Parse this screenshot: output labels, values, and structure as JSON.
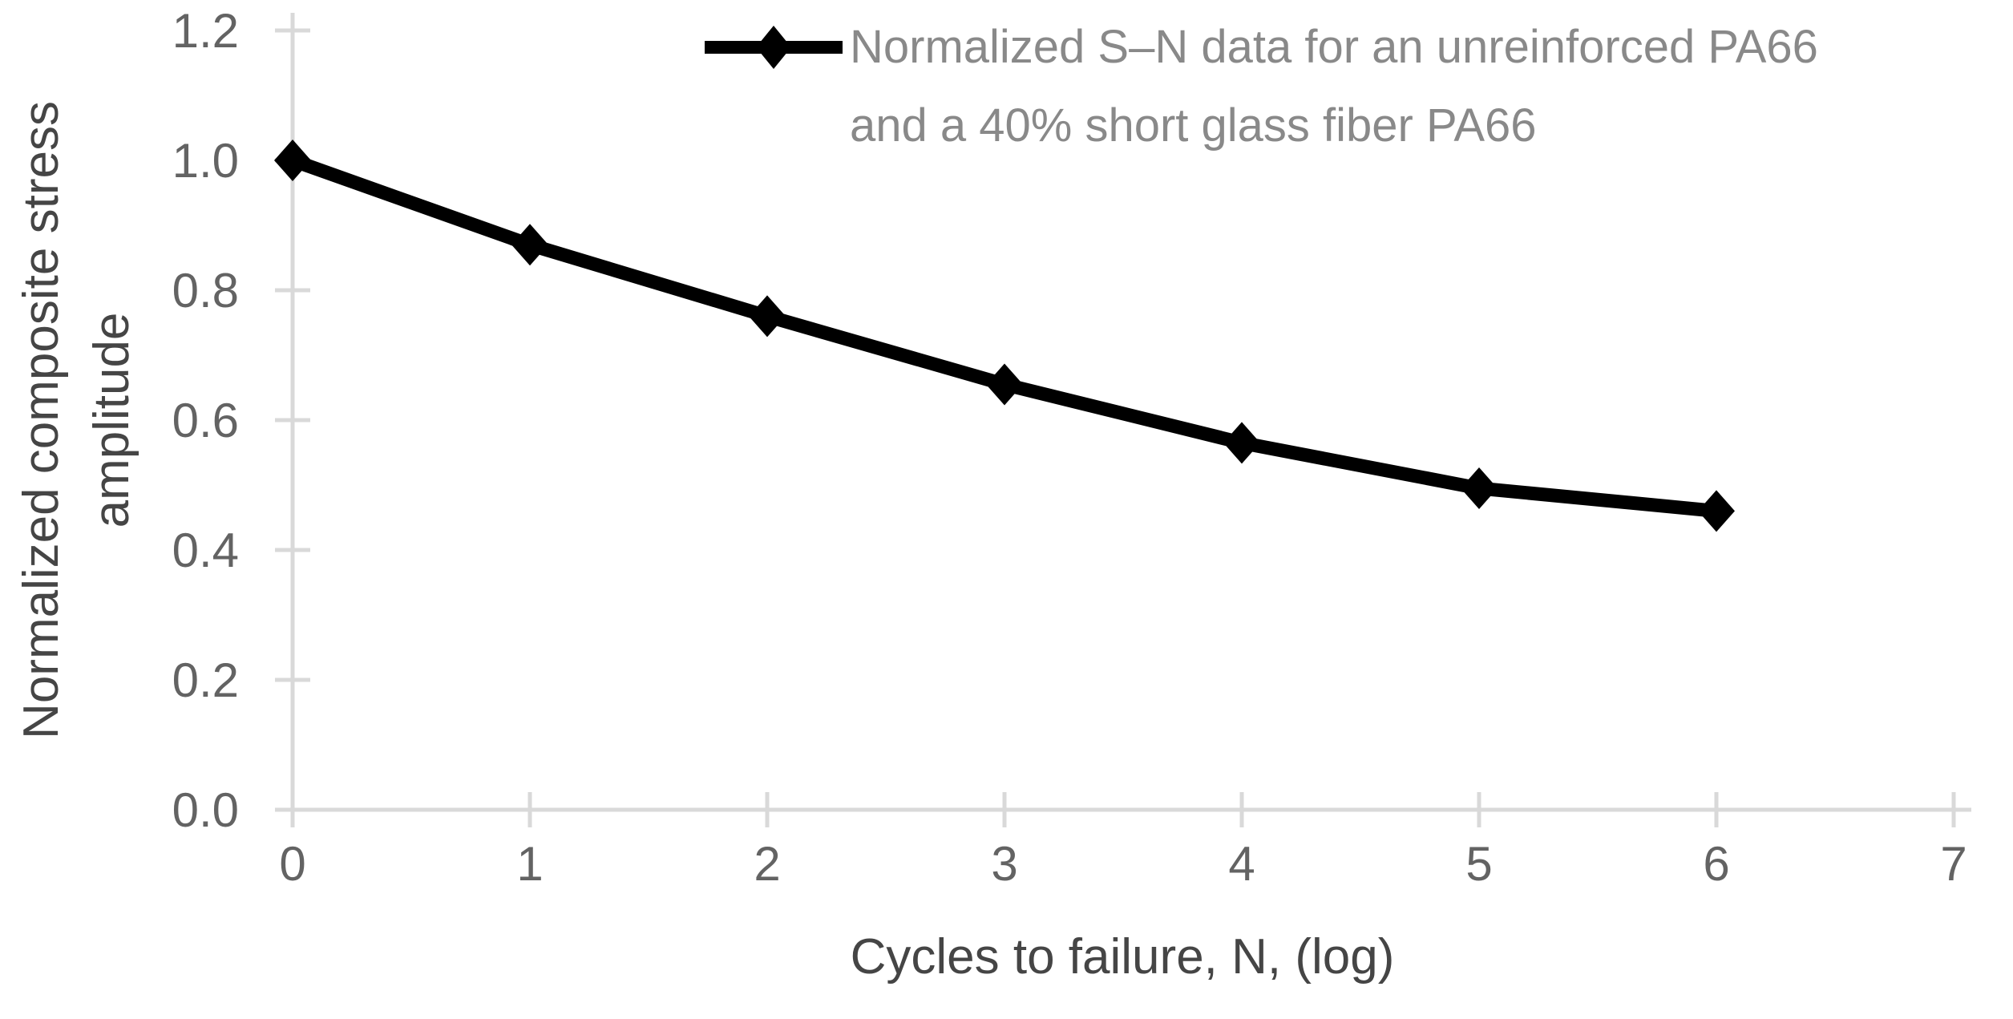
{
  "chart_data": {
    "type": "line",
    "series": [
      {
        "name": "Normalized S–N data for an unreinforced PA66 and a 40% short glass fiber PA66",
        "x": [
          0,
          1,
          2,
          3,
          4,
          5,
          6
        ],
        "y": [
          1.0,
          0.87,
          0.76,
          0.655,
          0.565,
          0.495,
          0.46
        ],
        "marker": "diamond",
        "color": "#000000"
      }
    ],
    "xlabel": "Cycles to failure, N, (log)",
    "ylabel": "Normalized composite stress amplitude",
    "ylabel_lines": [
      "Normalized composite stress",
      "amplitude"
    ],
    "xlim": [
      0,
      7
    ],
    "ylim": [
      0,
      1.2
    ],
    "x_ticks": [
      {
        "value": 0,
        "label": "0"
      },
      {
        "value": 1,
        "label": "1"
      },
      {
        "value": 2,
        "label": "2"
      },
      {
        "value": 3,
        "label": "3"
      },
      {
        "value": 4,
        "label": "4"
      },
      {
        "value": 5,
        "label": "5"
      },
      {
        "value": 6,
        "label": "6"
      },
      {
        "value": 7,
        "label": "7"
      }
    ],
    "y_ticks": [
      {
        "value": 0.0,
        "label": "0.0"
      },
      {
        "value": 0.2,
        "label": "0.2"
      },
      {
        "value": 0.4,
        "label": "0.4"
      },
      {
        "value": 0.6,
        "label": "0.6"
      },
      {
        "value": 0.8,
        "label": "0.8"
      },
      {
        "value": 1.0,
        "label": "1.0"
      },
      {
        "value": 1.2,
        "label": "1.2"
      }
    ],
    "grid": false,
    "legend_position": "top-center",
    "legend_lines": [
      "Normalized S–N data for an unreinforced PA66",
      "and a 40% short glass fiber PA66"
    ]
  },
  "colors": {
    "background": "#FFFFFF",
    "axis_line": "#D9D9D9",
    "tick_label": "#636363",
    "axis_title": "#454545",
    "legend_text": "#898989",
    "series_line": "#000000"
  }
}
